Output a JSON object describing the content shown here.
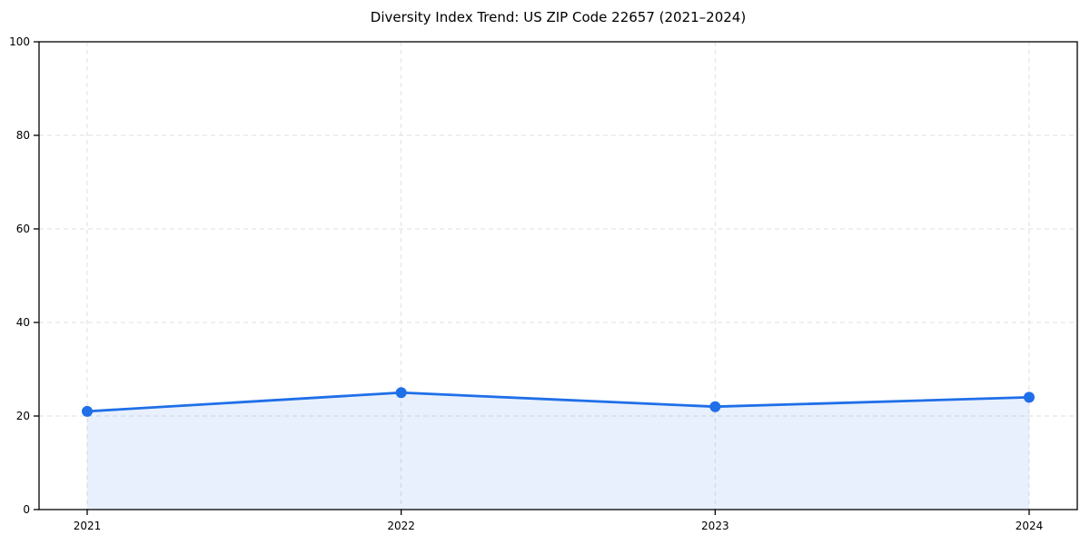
{
  "chart_data": {
    "type": "line",
    "title": "Diversity Index Trend: US ZIP Code 22657 (2021–2024)",
    "categories": [
      "2021",
      "2022",
      "2023",
      "2024"
    ],
    "series": [
      {
        "name": "Diversity Index",
        "values": [
          21,
          25,
          22,
          24
        ]
      }
    ],
    "xlabel": "",
    "ylabel": "",
    "ylim": [
      0,
      100
    ],
    "yticks": [
      0,
      20,
      40,
      60,
      80,
      100
    ],
    "grid": "dashed, both horizontal and vertical at ticks",
    "legend_position": "none",
    "area_fill": true,
    "marker": "circle",
    "colors": {
      "line": "#1f6fe8",
      "marker": "#1f6fe8",
      "fill": "rgba(31,111,232,0.10)",
      "gridline": "#dfdfdf",
      "axis": "#000000",
      "background": "#ffffff",
      "text": "#000000"
    }
  }
}
